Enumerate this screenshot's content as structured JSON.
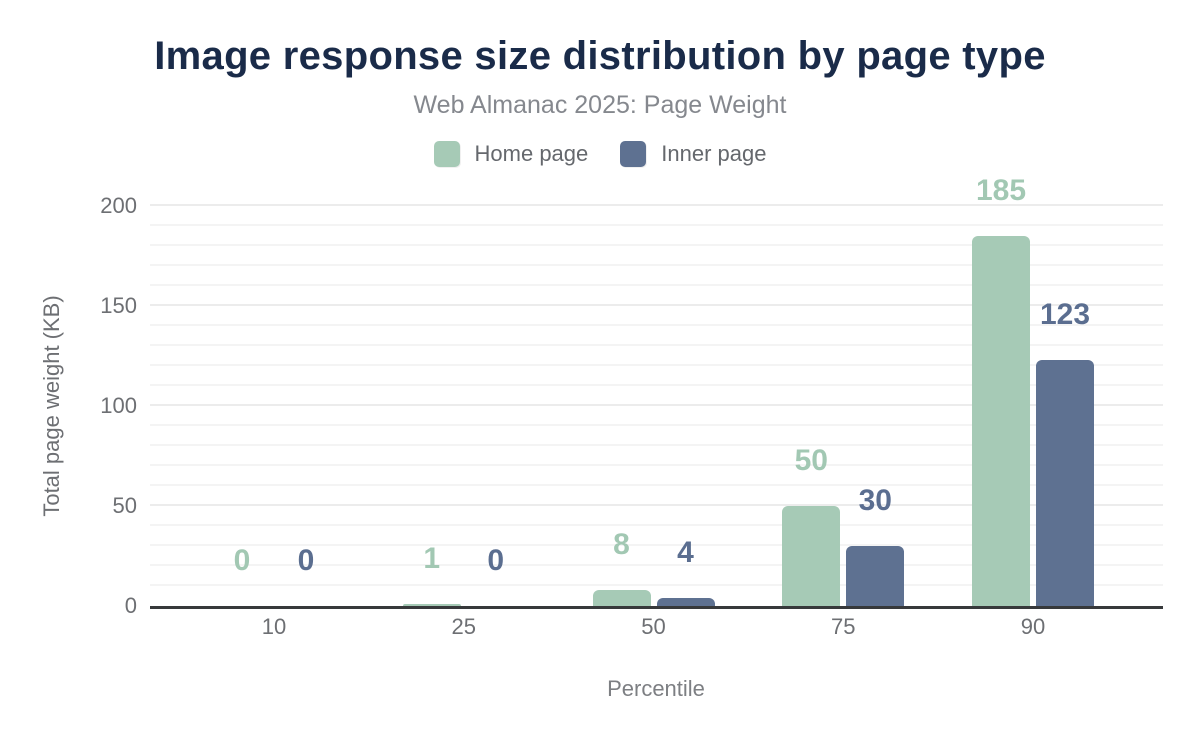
{
  "header": {
    "title": "Image response size distribution by page type",
    "subtitle": "Web Almanac 2025: Page Weight"
  },
  "chart_data": {
    "type": "bar",
    "title": "Image response size distribution by page type",
    "subtitle": "Web Almanac 2025: Page Weight",
    "categories": [
      "10",
      "25",
      "50",
      "75",
      "90"
    ],
    "series": [
      {
        "name": "Home page",
        "color": "#a6cab6",
        "label_color": "#a2c8b3",
        "values": [
          0,
          1,
          8,
          50,
          185
        ]
      },
      {
        "name": "Inner page",
        "color": "#5e7191",
        "label_color": "#5b6e90",
        "values": [
          0,
          0,
          4,
          30,
          123
        ]
      }
    ],
    "xlabel": "Percentile",
    "ylabel": "Total page weight (KB)",
    "ylim": [
      0,
      200
    ],
    "yticks": [
      0,
      50,
      100,
      150,
      200
    ],
    "grid": true,
    "grid_step": 10,
    "legend_position": "top",
    "colors": {
      "title": "#1a2b49",
      "subtitle": "#85888e",
      "axis_text": "#6d6f73",
      "axis_line": "#37393b",
      "gridline_minor": "#f4f4f4",
      "gridline_major": "#ececec"
    }
  }
}
